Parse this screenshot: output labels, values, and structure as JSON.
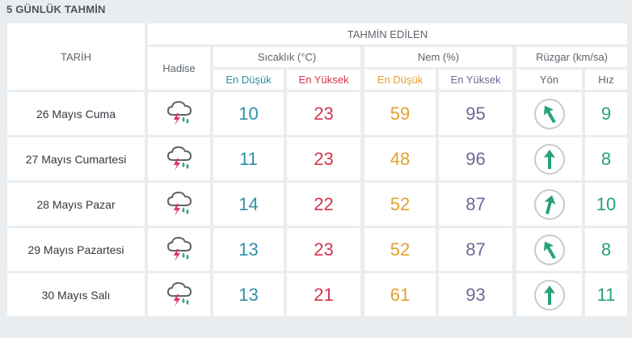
{
  "title": "5 GÜNLÜK TAHMİN",
  "header": {
    "date_col": "TARİH",
    "forecast_group": "TAHMİN EDİLEN",
    "event": "Hadise",
    "temp": "Sıcaklık (°C)",
    "humidity": "Nem (%)",
    "wind": "Rüzgar (km/sa)",
    "temp_min": "En Düşük",
    "temp_max": "En Yüksek",
    "hum_min": "En Düşük",
    "hum_max": "En Yüksek",
    "wind_dir": "Yön",
    "wind_speed": "Hız"
  },
  "rows": [
    {
      "date": "26 Mayıs Cuma",
      "icon": "thunderstorm-rain-icon",
      "temp_min": "10",
      "temp_max": "23",
      "hum_min": "59",
      "hum_max": "95",
      "wind_dir_deg": 330,
      "wind_speed": "9"
    },
    {
      "date": "27 Mayıs Cumartesi",
      "icon": "thunderstorm-rain-icon",
      "temp_min": "11",
      "temp_max": "23",
      "hum_min": "48",
      "hum_max": "96",
      "wind_dir_deg": 0,
      "wind_speed": "8"
    },
    {
      "date": "28 Mayıs Pazar",
      "icon": "thunderstorm-rain-icon",
      "temp_min": "14",
      "temp_max": "22",
      "hum_min": "52",
      "hum_max": "87",
      "wind_dir_deg": 15,
      "wind_speed": "10"
    },
    {
      "date": "29 Mayıs Pazartesi",
      "icon": "thunderstorm-rain-icon",
      "temp_min": "13",
      "temp_max": "23",
      "hum_min": "52",
      "hum_max": "87",
      "wind_dir_deg": 330,
      "wind_speed": "8"
    },
    {
      "date": "30 Mayıs Salı",
      "icon": "thunderstorm-rain-icon",
      "temp_min": "13",
      "temp_max": "21",
      "hum_min": "61",
      "hum_max": "93",
      "wind_dir_deg": 0,
      "wind_speed": "11"
    }
  ],
  "colors": {
    "temp_min": "#2f8fa8",
    "temp_max": "#d2354c",
    "hum_min": "#e2a133",
    "hum_max": "#6a6a96",
    "wind": "#27a27c"
  }
}
